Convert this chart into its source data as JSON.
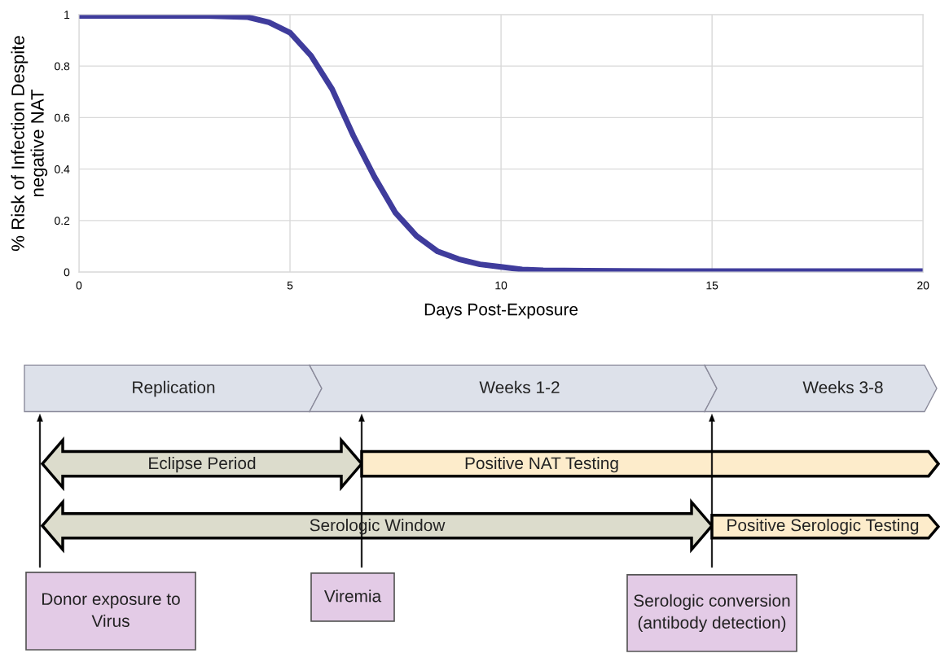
{
  "chart_data": [
    {
      "type": "line",
      "xlabel": "Days Post-Exposure",
      "ylabel": "% Risk of Infection Despite\nnegative NAT",
      "x": [
        0,
        1,
        2,
        3,
        4,
        4.5,
        5,
        5.5,
        6,
        6.5,
        7,
        7.5,
        8,
        8.5,
        9,
        9.5,
        10,
        10.5,
        11,
        12,
        14,
        16,
        18,
        20
      ],
      "series": [
        {
          "color": "#3f3c9c",
          "values": [
            0.995,
            0.995,
            0.995,
            0.995,
            0.99,
            0.97,
            0.93,
            0.84,
            0.71,
            0.53,
            0.37,
            0.23,
            0.14,
            0.08,
            0.05,
            0.03,
            0.02,
            0.01,
            0.007,
            0.005,
            0.004,
            0.004,
            0.004,
            0.004
          ]
        }
      ],
      "xlim": [
        0,
        20
      ],
      "xticks": [
        0,
        5,
        10,
        15,
        20
      ],
      "ylim": [
        0,
        1
      ],
      "yticks": [
        0,
        0.2,
        0.4,
        0.6,
        0.8,
        1
      ],
      "grid": true,
      "marker": "none",
      "line_style": "solid"
    },
    {
      "type": "other",
      "annotations": [
        "Replication",
        "Weeks 1-2",
        "Weeks 3-8",
        "Eclipse Period",
        "Positive NAT Testing",
        "Serologic Window",
        "Positive Serologic Testing",
        "Donor exposure to\nVirus",
        "Viremia",
        "Serologic conversion\n(antibody detection)"
      ]
    }
  ]
}
